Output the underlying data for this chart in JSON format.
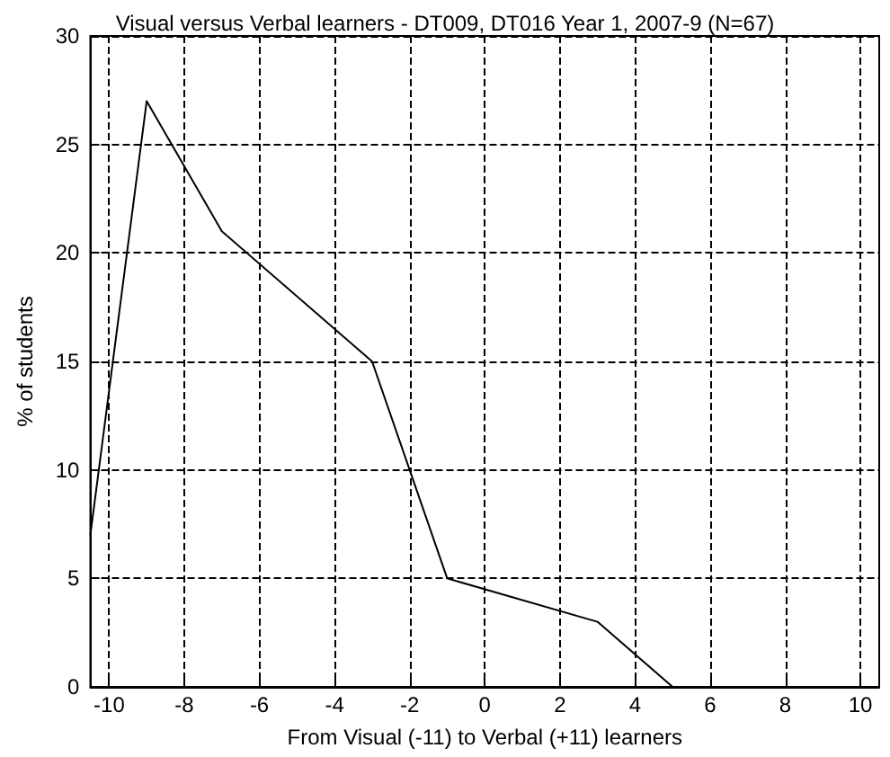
{
  "chart_data": {
    "type": "line",
    "title": "Visual versus Verbal learners - DT009, DT016 Year 1, 2007-9 (N=67)",
    "xlabel": "From Visual (-11) to Verbal (+11) learners",
    "ylabel": "% of students",
    "x": [
      -10.5,
      -9,
      -7,
      -3,
      -1,
      3,
      5
    ],
    "series": [
      {
        "color": "#000000",
        "values": [
          7,
          27,
          21,
          15,
          5,
          3,
          0
        ]
      }
    ],
    "xlim": [
      -10.5,
      10.5
    ],
    "xticks": [
      -10,
      -8,
      -6,
      -4,
      -2,
      0,
      2,
      4,
      6,
      8,
      10
    ],
    "ylim": [
      0,
      30
    ],
    "yticks": [
      0,
      5,
      10,
      15,
      20,
      25,
      30
    ],
    "grid": true,
    "marker": "none",
    "line_style": "solid"
  }
}
